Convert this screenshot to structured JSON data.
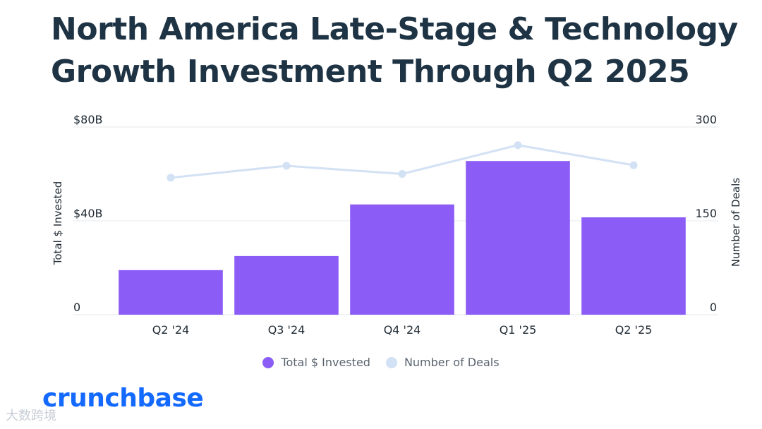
{
  "title_lines": [
    "North America Late-Stage & Technology",
    "Growth Investment Through Q2 2025"
  ],
  "chart_data": {
    "type": "bar",
    "categories": [
      "Q2 '24",
      "Q3 '24",
      "Q4 '24",
      "Q1 '25",
      "Q2 '25"
    ],
    "series": [
      {
        "name": "Total $ Invested",
        "type": "bar",
        "axis": "left",
        "values": [
          19,
          25,
          47,
          65.5,
          41.5
        ]
      },
      {
        "name": "Number of Deals",
        "type": "line",
        "axis": "right",
        "values": [
          219,
          238,
          225,
          271,
          239
        ]
      }
    ],
    "y_left": {
      "label": "Total $ Invested",
      "lim": [
        0,
        80
      ],
      "ticks": [
        0,
        40,
        80
      ],
      "tick_labels": [
        "0",
        "$40B",
        "$80B"
      ]
    },
    "y_right": {
      "label": "Number of Deals",
      "lim": [
        0,
        300
      ],
      "ticks": [
        0,
        150,
        300
      ],
      "tick_labels": [
        "0",
        "150",
        "300"
      ]
    },
    "legend_position": "bottom-center"
  },
  "colors": {
    "title": "#1e3344",
    "bar": "#8b5cf6",
    "line": "#d3e1f5",
    "grid": "#e6e9ee",
    "axis_text": "#1e2933",
    "logo": "#146aff"
  },
  "logo_text": "crunchbase",
  "watermark_text": "大数跨境"
}
